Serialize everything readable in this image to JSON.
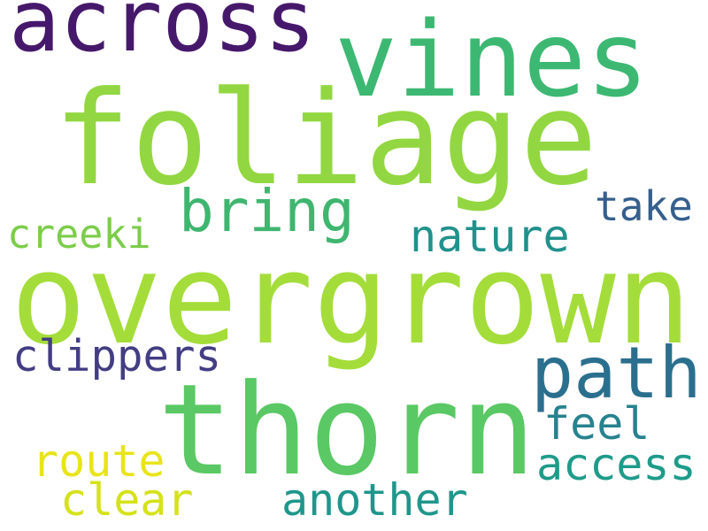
{
  "words": [
    {
      "text": "across",
      "color": "#46186b"
    },
    {
      "text": "vines",
      "color": "#3cb872"
    },
    {
      "text": "foliage",
      "color": "#92d741"
    },
    {
      "text": "bring",
      "color": "#3fb670"
    },
    {
      "text": "take",
      "color": "#355f8d"
    },
    {
      "text": "creeki",
      "color": "#7ccd4a"
    },
    {
      "text": "nature",
      "color": "#21918c"
    },
    {
      "text": "overgrown",
      "color": "#a4dd3a"
    },
    {
      "text": "path",
      "color": "#2b6f8e"
    },
    {
      "text": "clippers",
      "color": "#433d84"
    },
    {
      "text": "thorn",
      "color": "#5ac864"
    },
    {
      "text": "feel",
      "color": "#26828e"
    },
    {
      "text": "route",
      "color": "#e8e419"
    },
    {
      "text": "access",
      "color": "#1e9b8a"
    },
    {
      "text": "clear",
      "color": "#d5e21a"
    },
    {
      "text": "another",
      "color": "#1f968b"
    }
  ]
}
